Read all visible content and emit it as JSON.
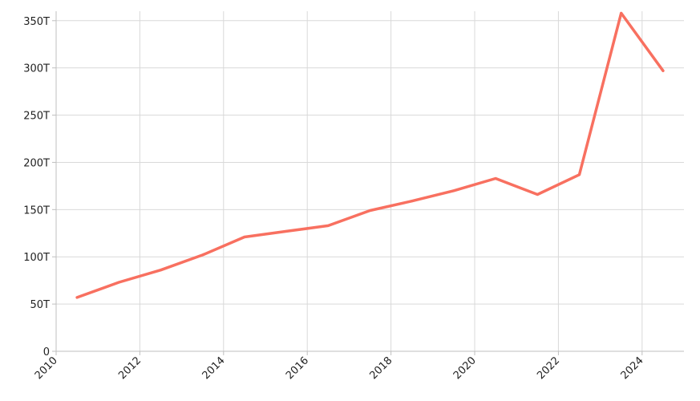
{
  "chart_data": {
    "type": "line",
    "title": "",
    "xlabel": "",
    "ylabel": "",
    "grid": true,
    "xlim": [
      2010,
      2025
    ],
    "ylim": [
      0,
      360
    ],
    "x_ticks": [
      2010,
      2012,
      2014,
      2016,
      2018,
      2020,
      2022,
      2024
    ],
    "x_tick_labels": [
      "2010",
      "2012",
      "2014",
      "2016",
      "2018",
      "2020",
      "2022",
      "2024"
    ],
    "y_ticks": [
      0,
      50,
      100,
      150,
      200,
      250,
      300,
      350
    ],
    "y_tick_labels": [
      "0",
      "50T",
      "100T",
      "150T",
      "200T",
      "250T",
      "300T",
      "350T"
    ],
    "series": [
      {
        "color": "#f87060",
        "x": [
          2010.5,
          2011.5,
          2012.5,
          2013.5,
          2014.5,
          2015.5,
          2016.5,
          2017.5,
          2018.5,
          2019.5,
          2020.5,
          2021.5,
          2022.5,
          2023.5,
          2024.5
        ],
        "values": [
          57,
          73,
          86,
          102,
          121,
          127,
          133,
          149,
          159,
          170,
          183,
          166,
          187,
          358,
          297
        ]
      }
    ]
  }
}
